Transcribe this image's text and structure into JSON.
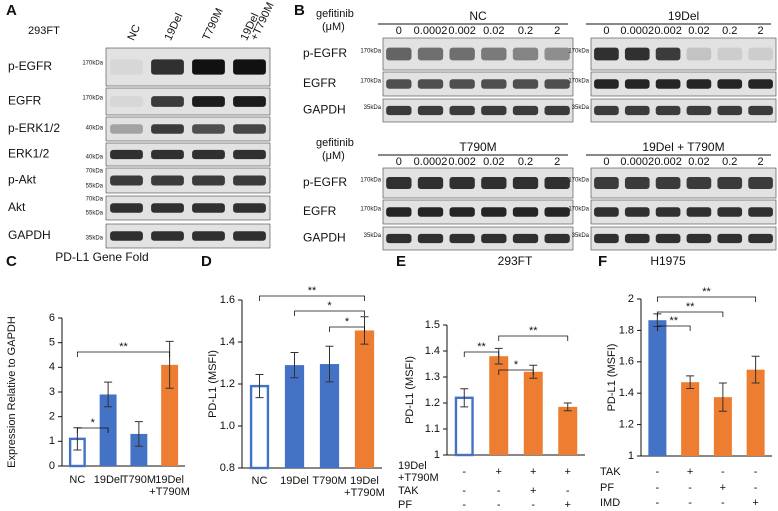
{
  "panel_a": {
    "label": "A",
    "cell_line": "293FT",
    "lanes": [
      "NC",
      "19Del",
      "T790M",
      [
        "19Del",
        "+T790M"
      ]
    ],
    "rows": [
      {
        "name": "p-EGFR",
        "markers": [
          "170kDa"
        ]
      },
      {
        "name": "EGFR",
        "markers": [
          "170kDa"
        ]
      },
      {
        "name": "p-ERK1/2",
        "markers": [
          "40kDa"
        ]
      },
      {
        "name": "ERK1/2",
        "markers": [
          "40kDa"
        ]
      },
      {
        "name": "p-Akt",
        "markers": [
          "70kDa",
          "55kDa"
        ]
      },
      {
        "name": "Akt",
        "markers": [
          "70kDa",
          "55kDa"
        ]
      },
      {
        "name": "GAPDH",
        "markers": [
          "35kDa"
        ]
      }
    ]
  },
  "panel_b": {
    "label": "B",
    "treatment": [
      "gefitinib",
      "(μM)"
    ],
    "doses": [
      "0",
      "0.0002",
      "0.002",
      "0.02",
      "0.2",
      "2"
    ],
    "groups": [
      "NC",
      "19Del",
      "T790M",
      "19Del + T790M"
    ],
    "rows": [
      {
        "name": "p-EGFR",
        "marker": "170kDa"
      },
      {
        "name": "EGFR",
        "marker": "170kDa"
      },
      {
        "name": "GAPDH",
        "marker": "35kDa"
      }
    ]
  },
  "chart_data": [
    {
      "type": "bar",
      "panel": "C",
      "title": "PD-L1 Gene Fold",
      "y_label": "Expression Relative to GAPDH",
      "categories": [
        "NC",
        "19Del",
        "T790M",
        [
          "19Del",
          "+T790M"
        ]
      ],
      "values": [
        1.1,
        2.9,
        1.3,
        4.1
      ],
      "errors": [
        0.45,
        0.5,
        0.5,
        0.95
      ],
      "colors": [
        "#4472c4",
        "#4472c4",
        "#4472c4",
        "#ed7d31"
      ],
      "hollow": [
        true,
        false,
        false,
        false
      ],
      "ylim": [
        0,
        6
      ],
      "yticks": [
        0,
        1,
        2,
        3,
        4,
        5,
        6
      ],
      "annotations": [
        "*",
        "**"
      ]
    },
    {
      "type": "bar",
      "panel": "D",
      "y_label": "PD-L1 (MSFI)",
      "categories": [
        "NC",
        "19Del",
        "T790M",
        [
          "19Del",
          "+T790M"
        ]
      ],
      "values": [
        1.19,
        1.29,
        1.295,
        1.455
      ],
      "errors": [
        0.055,
        0.06,
        0.085,
        0.065
      ],
      "colors": [
        "#4472c4",
        "#4472c4",
        "#4472c4",
        "#ed7d31"
      ],
      "hollow": [
        true,
        false,
        false,
        false
      ],
      "ylim": [
        0.8,
        1.6
      ],
      "yticks": [
        0.8,
        {
          "value": 1,
          "label": "1.0"
        },
        1.2,
        1.4,
        1.6
      ],
      "annotations": [
        "**",
        "*",
        "*"
      ]
    },
    {
      "type": "bar",
      "panel": "E",
      "title": "293FT",
      "y_label": "PD-L1 (MSFI)",
      "conditions": [
        {
          "label": [
            "19Del",
            "+T790M"
          ],
          "values": [
            "-",
            "+",
            "+",
            "+"
          ]
        },
        {
          "label": [
            "TAK"
          ],
          "values": [
            "-",
            "-",
            "+",
            "-"
          ]
        },
        {
          "label": [
            "PF"
          ],
          "values": [
            "-",
            "-",
            "-",
            "+"
          ]
        }
      ],
      "values": [
        1.22,
        1.38,
        1.32,
        1.185
      ],
      "errors": [
        0.035,
        0.03,
        0.025,
        0.015
      ],
      "colors": [
        "#4472c4",
        "#ed7d31",
        "#ed7d31",
        "#ed7d31"
      ],
      "hollow": [
        true,
        false,
        false,
        false
      ],
      "ylim": [
        1,
        1.5
      ],
      "yticks": [
        1,
        1.1,
        1.2,
        1.3,
        1.4,
        1.5
      ],
      "annotations": [
        "**",
        "*",
        "**"
      ]
    },
    {
      "type": "bar",
      "panel": "F",
      "title": "H1975",
      "y_label": "PD-L1 (MSFI)",
      "conditions": [
        {
          "label": [
            "TAK"
          ],
          "values": [
            "-",
            "+",
            "-",
            "-"
          ]
        },
        {
          "label": [
            "PF"
          ],
          "values": [
            "-",
            "-",
            "+",
            "-"
          ]
        },
        {
          "label": [
            "IMD"
          ],
          "values": [
            "-",
            "-",
            "-",
            "+"
          ]
        }
      ],
      "values": [
        1.865,
        1.47,
        1.375,
        1.55
      ],
      "errors": [
        0.04,
        0.04,
        0.09,
        0.085
      ],
      "colors": [
        "#4472c4",
        "#ed7d31",
        "#ed7d31",
        "#ed7d31"
      ],
      "hollow": [
        false,
        false,
        false,
        false
      ],
      "ylim": [
        1,
        2
      ],
      "yticks": [
        1,
        1.2,
        1.4,
        1.6,
        1.8,
        2
      ],
      "annotations": [
        "**",
        "**",
        "**"
      ]
    }
  ]
}
